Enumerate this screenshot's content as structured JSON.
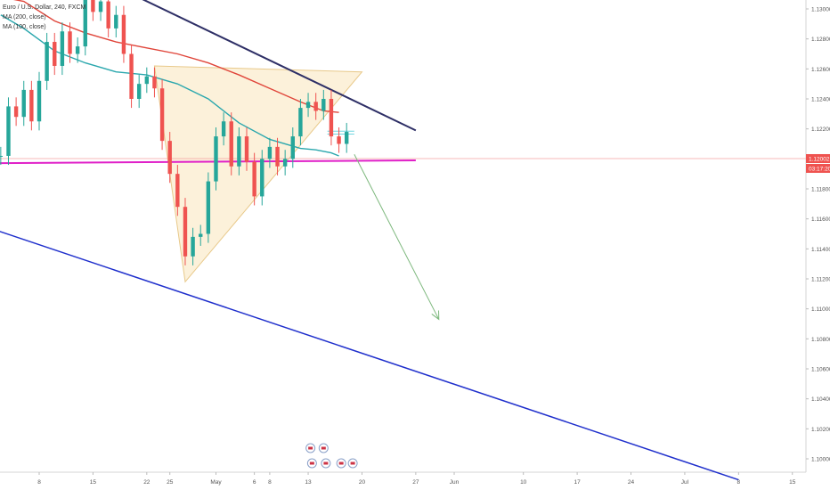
{
  "chart_data": {
    "type": "line",
    "symbol": "Euro / U.S. Dollar, 240, FXCM",
    "indicators": [
      {
        "name": "MA (200, close)",
        "color": "#e0453a"
      },
      {
        "name": "MA (100, close)",
        "color": "#2aa7ad"
      }
    ],
    "y_ticks": [
      "1.13000",
      "1.12800",
      "1.12600",
      "1.12400",
      "1.12200",
      "1.12000",
      "1.11800",
      "1.11600",
      "1.11400",
      "1.11200",
      "1.11000",
      "1.10800",
      "1.10600",
      "1.10400",
      "1.10200",
      "1.10000"
    ],
    "ylim": [
      1.0986,
      1.1308
    ],
    "x_ticks": [
      {
        "label": "8",
        "day": 8
      },
      {
        "label": "15",
        "day": 15
      },
      {
        "label": "22",
        "day": 22
      },
      {
        "label": "25",
        "day": 25
      },
      {
        "label": "May",
        "day": 31
      },
      {
        "label": "6",
        "day": 36
      },
      {
        "label": "8",
        "day": 38
      },
      {
        "label": "13",
        "day": 43
      },
      {
        "label": "20",
        "day": 50
      },
      {
        "label": "27",
        "day": 57
      },
      {
        "label": "Jun",
        "day": 62
      },
      {
        "label": "10",
        "day": 71
      },
      {
        "label": "17",
        "day": 78
      },
      {
        "label": "24",
        "day": 85
      },
      {
        "label": "Jul",
        "day": 92
      },
      {
        "label": "8",
        "day": 99
      },
      {
        "label": "15",
        "day": 106
      }
    ],
    "last_price": "1.12002",
    "countdown": "03:17:20",
    "price_series": [
      [
        3,
        1.1202
      ],
      [
        4,
        1.1235
      ],
      [
        5,
        1.1228
      ],
      [
        6,
        1.1246
      ],
      [
        7,
        1.1225
      ],
      [
        8,
        1.1252
      ],
      [
        9,
        1.1278
      ],
      [
        10,
        1.1262
      ],
      [
        11,
        1.1285
      ],
      [
        12,
        1.127
      ],
      [
        13,
        1.1275
      ],
      [
        14,
        1.1306
      ],
      [
        15,
        1.1298
      ],
      [
        16,
        1.1305
      ],
      [
        17,
        1.1287
      ],
      [
        18,
        1.1296
      ],
      [
        19,
        1.127
      ],
      [
        20,
        1.124
      ],
      [
        21,
        1.125
      ],
      [
        22,
        1.1255
      ],
      [
        23,
        1.1247
      ],
      [
        24,
        1.1212
      ],
      [
        25,
        1.119
      ],
      [
        26,
        1.1168
      ],
      [
        27,
        1.1135
      ],
      [
        28,
        1.1148
      ],
      [
        29,
        1.115
      ],
      [
        30,
        1.1185
      ],
      [
        31,
        1.1215
      ],
      [
        32,
        1.1225
      ],
      [
        33,
        1.1195
      ],
      [
        34,
        1.1215
      ],
      [
        35,
        1.1198
      ],
      [
        36,
        1.1175
      ],
      [
        37,
        1.12
      ],
      [
        38,
        1.1208
      ],
      [
        39,
        1.1195
      ],
      [
        40,
        1.12
      ],
      [
        41,
        1.1215
      ],
      [
        42,
        1.1234
      ],
      [
        43,
        1.1238
      ],
      [
        44,
        1.1232
      ],
      [
        45,
        1.124
      ],
      [
        46,
        1.1215
      ],
      [
        47,
        1.121
      ],
      [
        48,
        1.1218
      ]
    ],
    "ma200": [
      [
        3,
        1.1308
      ],
      [
        6,
        1.1305
      ],
      [
        10,
        1.1292
      ],
      [
        14,
        1.1284
      ],
      [
        18,
        1.1278
      ],
      [
        22,
        1.1274
      ],
      [
        26,
        1.127
      ],
      [
        30,
        1.1264
      ],
      [
        34,
        1.1256
      ],
      [
        38,
        1.1247
      ],
      [
        42,
        1.1238
      ],
      [
        45,
        1.1232
      ],
      [
        47,
        1.1231
      ]
    ],
    "ma100": [
      [
        3,
        1.1296
      ],
      [
        6,
        1.1287
      ],
      [
        10,
        1.1272
      ],
      [
        14,
        1.1264
      ],
      [
        18,
        1.1258
      ],
      [
        22,
        1.1256
      ],
      [
        26,
        1.125
      ],
      [
        30,
        1.124
      ],
      [
        34,
        1.1224
      ],
      [
        38,
        1.1213
      ],
      [
        42,
        1.1207
      ],
      [
        44,
        1.1206
      ],
      [
        46,
        1.1204
      ],
      [
        47,
        1.1202
      ]
    ],
    "annotations": [
      {
        "kind": "triangle",
        "points": [
          [
            23,
            1.1262
          ],
          [
            50,
            1.1258
          ],
          [
            27,
            1.1118
          ]
        ],
        "fill": "rgba(247,215,150,0.35)",
        "stroke": "#e8c98a"
      },
      {
        "kind": "trendline",
        "from": [
          20,
          1.131
        ],
        "to": [
          57,
          1.1219
        ],
        "color": "#2e2f66",
        "width": 2
      },
      {
        "kind": "trendline",
        "from": [
          -2,
          1.116
        ],
        "to": [
          99,
          1.0986
        ],
        "color": "#1f2fcc",
        "width": 1.5
      },
      {
        "kind": "hline",
        "from": [
          -2,
          1.1197
        ],
        "to": [
          57,
          1.1199
        ],
        "color": "#e020c8",
        "width": 2
      },
      {
        "kind": "hline",
        "from": [
          -2,
          1.12002
        ],
        "to": [
          110,
          1.12002
        ],
        "color": "#f5a0a0",
        "width": 0.7
      },
      {
        "kind": "arrow",
        "from": [
          49,
          1.1203
        ],
        "to": [
          60,
          1.1093
        ],
        "color": "#7db87d",
        "width": 1
      }
    ]
  }
}
